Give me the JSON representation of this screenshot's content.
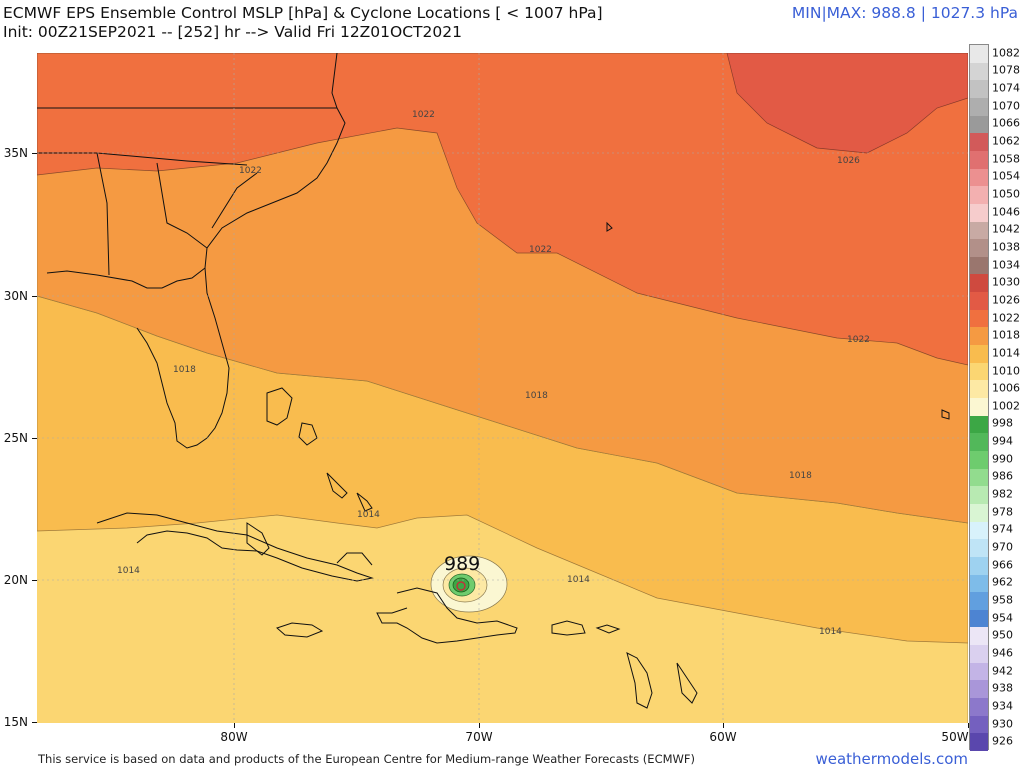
{
  "header": {
    "title_line1": "ECMWF EPS Ensemble Control MSLP [hPa] & Cyclone Locations [ < 1007 hPa]",
    "title_line2": "Init: 00Z21SEP2021 -- [252] hr --> Valid Fri 12Z01OCT2021",
    "minmax": "MIN|MAX: 988.8 | 1027.3 hPa"
  },
  "map": {
    "lat_labels": [
      "35N",
      "30N",
      "25N",
      "20N",
      "15N"
    ],
    "lon_labels": [
      "80W",
      "70W",
      "60W",
      "50W"
    ],
    "contour_labels": [
      "1022",
      "1022",
      "1022",
      "1022",
      "1026",
      "1018",
      "1018",
      "1018",
      "1014",
      "1014",
      "1014",
      "1014"
    ],
    "storm": {
      "label": "989"
    }
  },
  "colorbar": {
    "levels": [
      "1082",
      "1078",
      "1074",
      "1070",
      "1066",
      "1062",
      "1058",
      "1054",
      "1050",
      "1046",
      "1042",
      "1038",
      "1034",
      "1030",
      "1026",
      "1022",
      "1018",
      "1014",
      "1010",
      "1006",
      "1002",
      "998",
      "994",
      "990",
      "986",
      "982",
      "978",
      "974",
      "970",
      "966",
      "962",
      "958",
      "954",
      "950",
      "946",
      "942",
      "938",
      "934",
      "930",
      "926"
    ],
    "colors": [
      "#e8e8e8",
      "#d4d4d4",
      "#c2c2c2",
      "#aeaeae",
      "#9a9a9a",
      "#d25a5a",
      "#e07070",
      "#ec9090",
      "#f3b0b0",
      "#f6cccc",
      "#c8aaa4",
      "#b29089",
      "#9a766e",
      "#cf4a3f",
      "#e25a45",
      "#f0703f",
      "#f59a42",
      "#f9bc4e",
      "#fbd672",
      "#fde9a4",
      "#fbf7d2",
      "#3ca745",
      "#52b85a",
      "#6ecc6e",
      "#92dc8e",
      "#b8eab2",
      "#d9f5d3",
      "#d8f2fb",
      "#bfe4f6",
      "#9ed2f0",
      "#7ebce9",
      "#619fdf",
      "#4d84d2",
      "#ece6f6",
      "#dad0ef",
      "#c3b4e6",
      "#a996d9",
      "#8c78cb",
      "#7460bf",
      "#5a47ad"
    ]
  },
  "footer": {
    "disclaimer": "This service is based on data and products of the European Centre for Medium-range Weather Forecasts (ECMWF)",
    "brand": "weathermodels.com"
  }
}
